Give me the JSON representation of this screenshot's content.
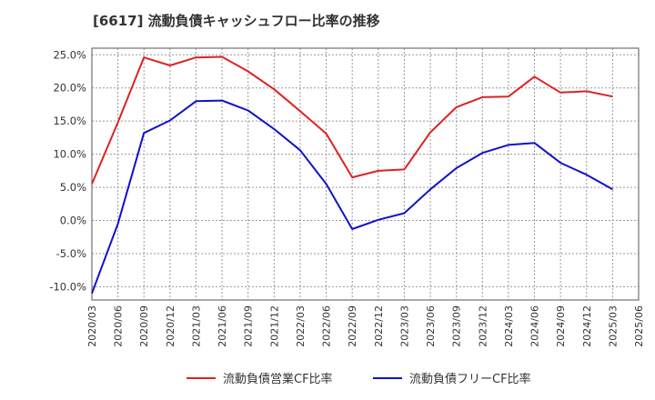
{
  "chart_data": {
    "type": "line",
    "title": "[6617]  流動負債キャッシュフロー比率の推移",
    "xlabel": "",
    "ylabel": "",
    "ylim": [
      -12.0,
      26.0
    ],
    "y_ticks": [
      -10,
      -5,
      0,
      5,
      10,
      15,
      20,
      25
    ],
    "y_tick_labels": [
      "-10.0%",
      "-5.0%",
      "0.0%",
      "5.0%",
      "10.0%",
      "15.0%",
      "20.0%",
      "25.0%"
    ],
    "x": [
      "2020/03",
      "2020/06",
      "2020/09",
      "2020/12",
      "2021/03",
      "2021/06",
      "2021/09",
      "2021/12",
      "2022/03",
      "2022/06",
      "2022/09",
      "2022/12",
      "2023/03",
      "2023/06",
      "2023/09",
      "2023/12",
      "2024/03",
      "2024/06",
      "2024/09",
      "2024/12",
      "2025/03",
      "2025/06"
    ],
    "grid": true,
    "legend_position": "bottom",
    "series": [
      {
        "name": "流動負債営業CF比率",
        "color": "#dd2222",
        "values": [
          5.5,
          14.8,
          24.6,
          23.4,
          24.6,
          24.7,
          22.5,
          19.8,
          16.5,
          13.1,
          6.5,
          7.5,
          7.7,
          13.3,
          17.1,
          18.6,
          18.7,
          21.7,
          19.3,
          19.5,
          18.7,
          null
        ]
      },
      {
        "name": "流動負債フリーCF比率",
        "color": "#1111cc",
        "values": [
          -11.0,
          -0.5,
          13.2,
          15.1,
          18.0,
          18.1,
          16.6,
          13.8,
          10.6,
          5.5,
          -1.3,
          0.1,
          1.1,
          4.7,
          7.9,
          10.2,
          11.4,
          11.7,
          8.7,
          6.9,
          4.7,
          null
        ]
      }
    ]
  }
}
